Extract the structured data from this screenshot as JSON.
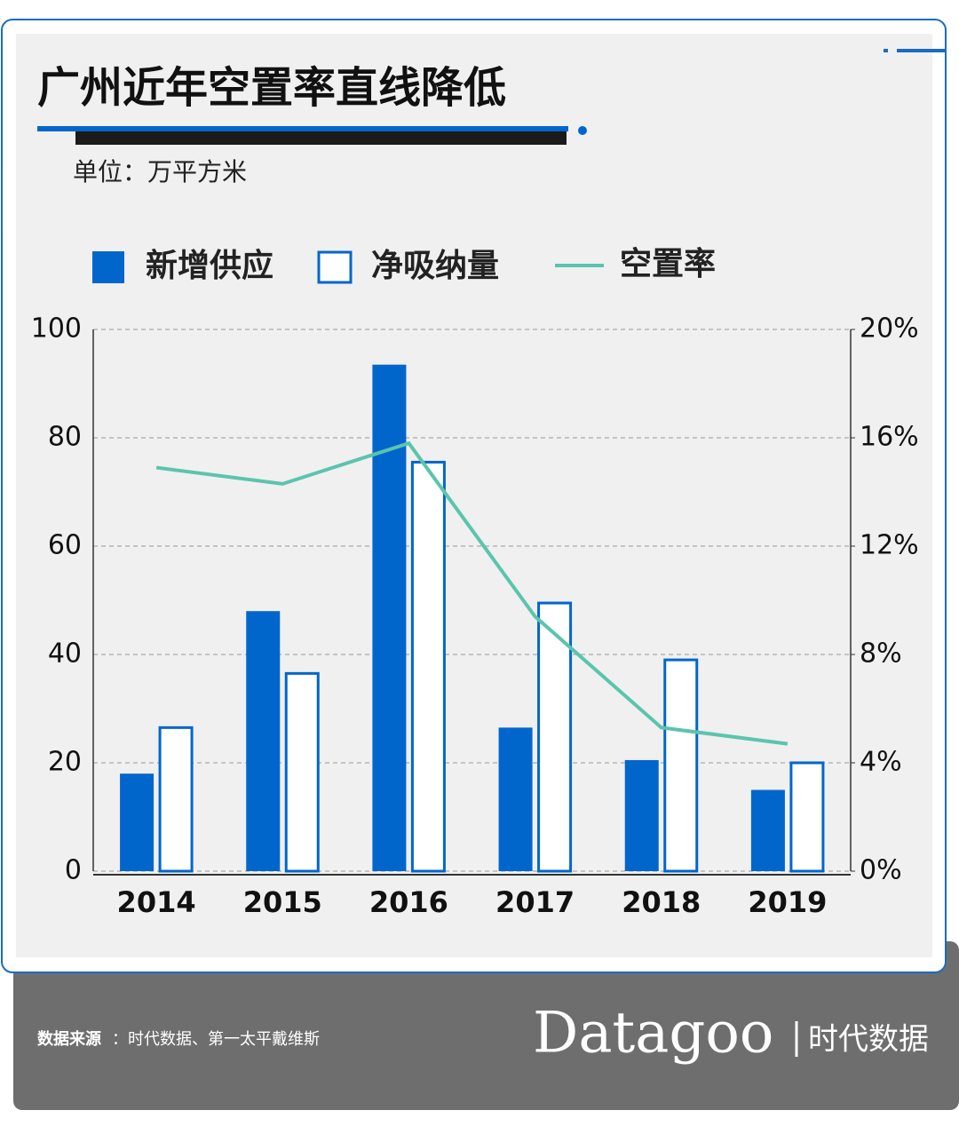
{
  "chart_data": {
    "type": "bar",
    "title": "广州近年空置率直线降低",
    "subtitle": "单位：万平方米",
    "categories": [
      "2014",
      "2015",
      "2016",
      "2017",
      "2018",
      "2019"
    ],
    "series": [
      {
        "name": "新增供应",
        "type": "bar",
        "color": "#0066cc",
        "values": [
          18,
          48,
          93.5,
          26.5,
          20.5,
          15
        ]
      },
      {
        "name": "净吸纳量",
        "type": "bar-outline",
        "color": "#0066cc",
        "values": [
          26.5,
          36.5,
          75.5,
          49.5,
          39,
          20
        ]
      },
      {
        "name": "空置率",
        "type": "line",
        "axis": "y2",
        "color": "#5bc4ad",
        "values": [
          14.9,
          14.3,
          15.8,
          9.4,
          5.3,
          4.7
        ]
      }
    ],
    "ylim": [
      0,
      100
    ],
    "yticks": [
      0,
      20,
      40,
      60,
      80,
      100
    ],
    "y2lim": [
      0,
      20
    ],
    "y2ticks": [
      {
        "value": 0,
        "label": "0%"
      },
      {
        "value": 4,
        "label": "4%"
      },
      {
        "value": 8,
        "label": "8%"
      },
      {
        "value": 12,
        "label": "12%"
      },
      {
        "value": 16,
        "label": "16%"
      },
      {
        "value": 20,
        "label": "20%"
      }
    ],
    "grid": true,
    "source_label": "数据来源",
    "source": "：时代数据、第一太平戴维斯",
    "brand": "Datagoo",
    "brand_cn": "时代数据"
  }
}
